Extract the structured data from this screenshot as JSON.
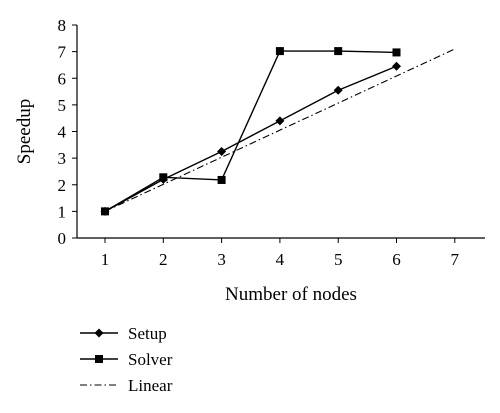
{
  "chart_data": {
    "type": "line",
    "xlabel": "Number of nodes",
    "ylabel": "Speedup",
    "xlim": [
      0.5,
      7.5
    ],
    "ylim": [
      0,
      8
    ],
    "x_ticks": [
      "1",
      "2",
      "3",
      "4",
      "5",
      "6",
      "7"
    ],
    "y_ticks": [
      "0",
      "1",
      "2",
      "3",
      "4",
      "5",
      "6",
      "7",
      "8"
    ],
    "grid": false,
    "legend_position": "bottom-left",
    "series": [
      {
        "name": "Setup",
        "marker": "diamond",
        "line_style": "solid",
        "x": [
          1,
          2,
          3,
          4,
          5,
          6
        ],
        "y": [
          1.0,
          2.2,
          3.25,
          4.4,
          5.55,
          6.45
        ]
      },
      {
        "name": "Solver",
        "marker": "square",
        "line_style": "solid",
        "x": [
          1,
          2,
          3,
          4,
          5,
          6
        ],
        "y": [
          1.0,
          2.28,
          2.18,
          7.02,
          7.02,
          6.97
        ]
      },
      {
        "name": "Linear",
        "marker": "none",
        "line_style": "dash-dot",
        "x": [
          1,
          7
        ],
        "y": [
          1.0,
          7.1
        ]
      }
    ]
  }
}
